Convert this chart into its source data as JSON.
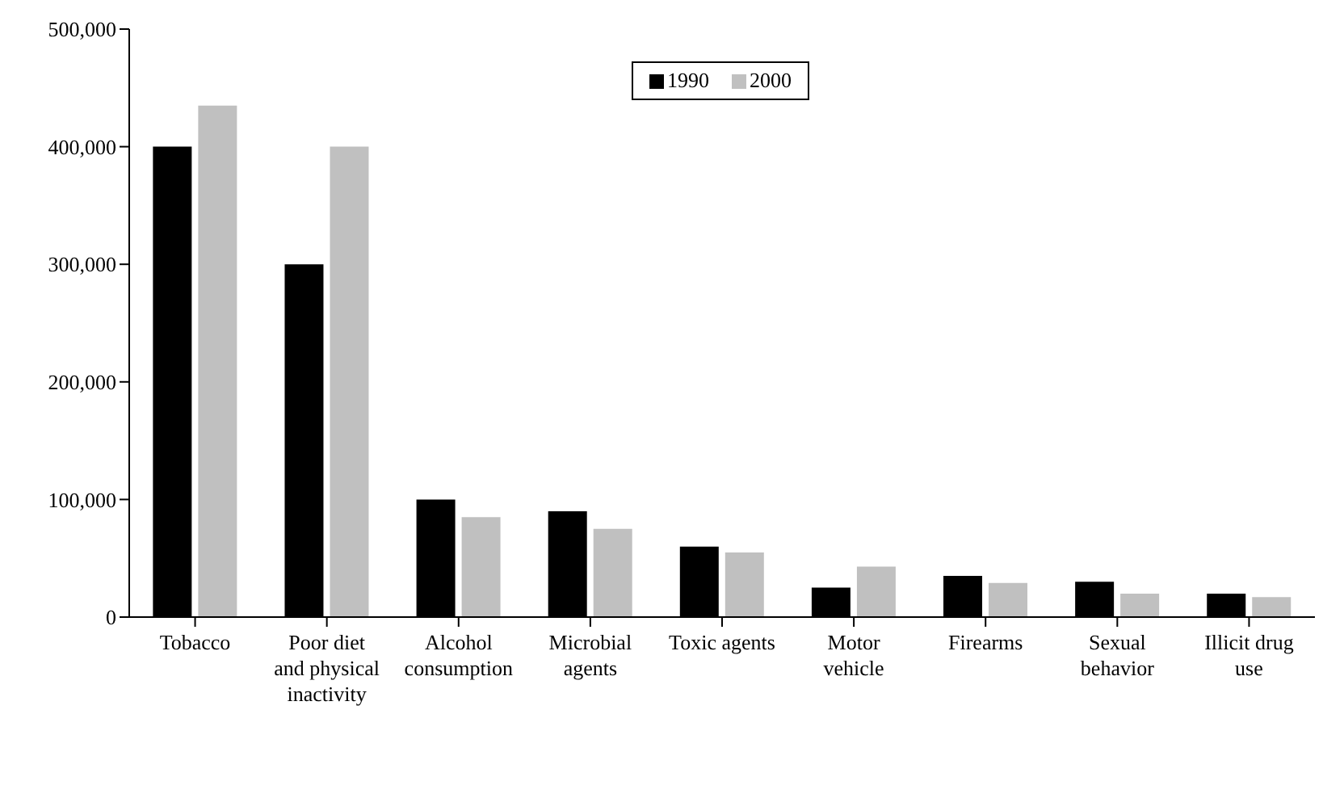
{
  "chart_data": {
    "type": "bar",
    "categories": [
      "Tobacco",
      "Poor diet and physical inactivity",
      "Alcohol consumption",
      "Microbial agents",
      "Toxic agents",
      "Motor vehicle",
      "Firearms",
      "Sexual behavior",
      "Illicit drug use"
    ],
    "series": [
      {
        "name": "1990",
        "color": "#000000",
        "values": [
          400000,
          300000,
          100000,
          90000,
          60000,
          25000,
          35000,
          30000,
          20000
        ]
      },
      {
        "name": "2000",
        "color": "#c0c0c0",
        "values": [
          435000,
          400000,
          85000,
          75000,
          55000,
          43000,
          29000,
          20000,
          17000
        ]
      }
    ],
    "ylim": [
      0,
      500000
    ],
    "yticks": [
      0,
      {
        "value": 100000,
        "label": "100,000"
      },
      {
        "value": 200000,
        "label": "200,000"
      },
      {
        "value": 300000,
        "label": "300,000"
      },
      {
        "value": 400000,
        "label": "400,000"
      },
      {
        "value": 500000,
        "label": "500,000"
      }
    ],
    "grid": false,
    "legend": "top"
  }
}
